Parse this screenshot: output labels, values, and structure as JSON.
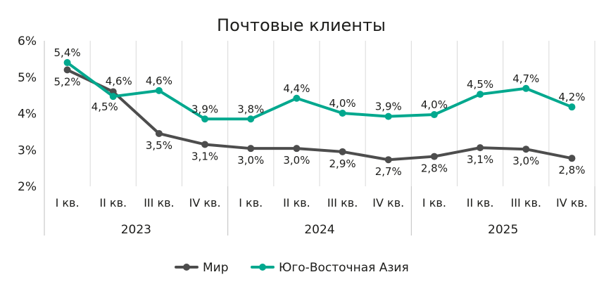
{
  "chart_data": {
    "type": "line",
    "title": "Почтовые клиенты",
    "categories": [
      "I кв.",
      "II кв.",
      "III кв.",
      "IV кв.",
      "I кв.",
      "II кв.",
      "III кв.",
      "IV кв.",
      "I кв.",
      "II кв.",
      "III кв.",
      "IV кв."
    ],
    "groups": [
      {
        "label": "2023",
        "count": 4
      },
      {
        "label": "2024",
        "count": 4
      },
      {
        "label": "2025",
        "count": 4
      }
    ],
    "y_ticks": [
      "2%",
      "3%",
      "4%",
      "5%",
      "6%"
    ],
    "ylim": [
      2,
      6
    ],
    "grid": "vertical",
    "legend_position": "bottom",
    "series": [
      {
        "name": "Мир",
        "color": "#4d4d4d",
        "values": [
          5.2,
          4.6,
          3.45,
          3.15,
          3.04,
          3.04,
          2.95,
          2.73,
          2.82,
          3.06,
          3.02,
          2.77
        ],
        "labels": [
          "5,2%",
          "4,6%",
          "3,5%",
          "3,1%",
          "3,0%",
          "3,0%",
          "2,9%",
          "2,7%",
          "2,8%",
          "3,1%",
          "3,0%",
          "2,8%"
        ]
      },
      {
        "name": "Юго-Восточная Азия",
        "color": "#00a88e",
        "values": [
          5.4,
          4.47,
          4.63,
          3.85,
          3.85,
          4.42,
          4.01,
          3.92,
          3.97,
          4.53,
          4.69,
          4.18
        ],
        "labels": [
          "5,4%",
          "4,5%",
          "4,6%",
          "3,9%",
          "3,8%",
          "4,4%",
          "4,0%",
          "3,9%",
          "4,0%",
          "4,5%",
          "4,7%",
          "4,2%"
        ]
      }
    ]
  }
}
